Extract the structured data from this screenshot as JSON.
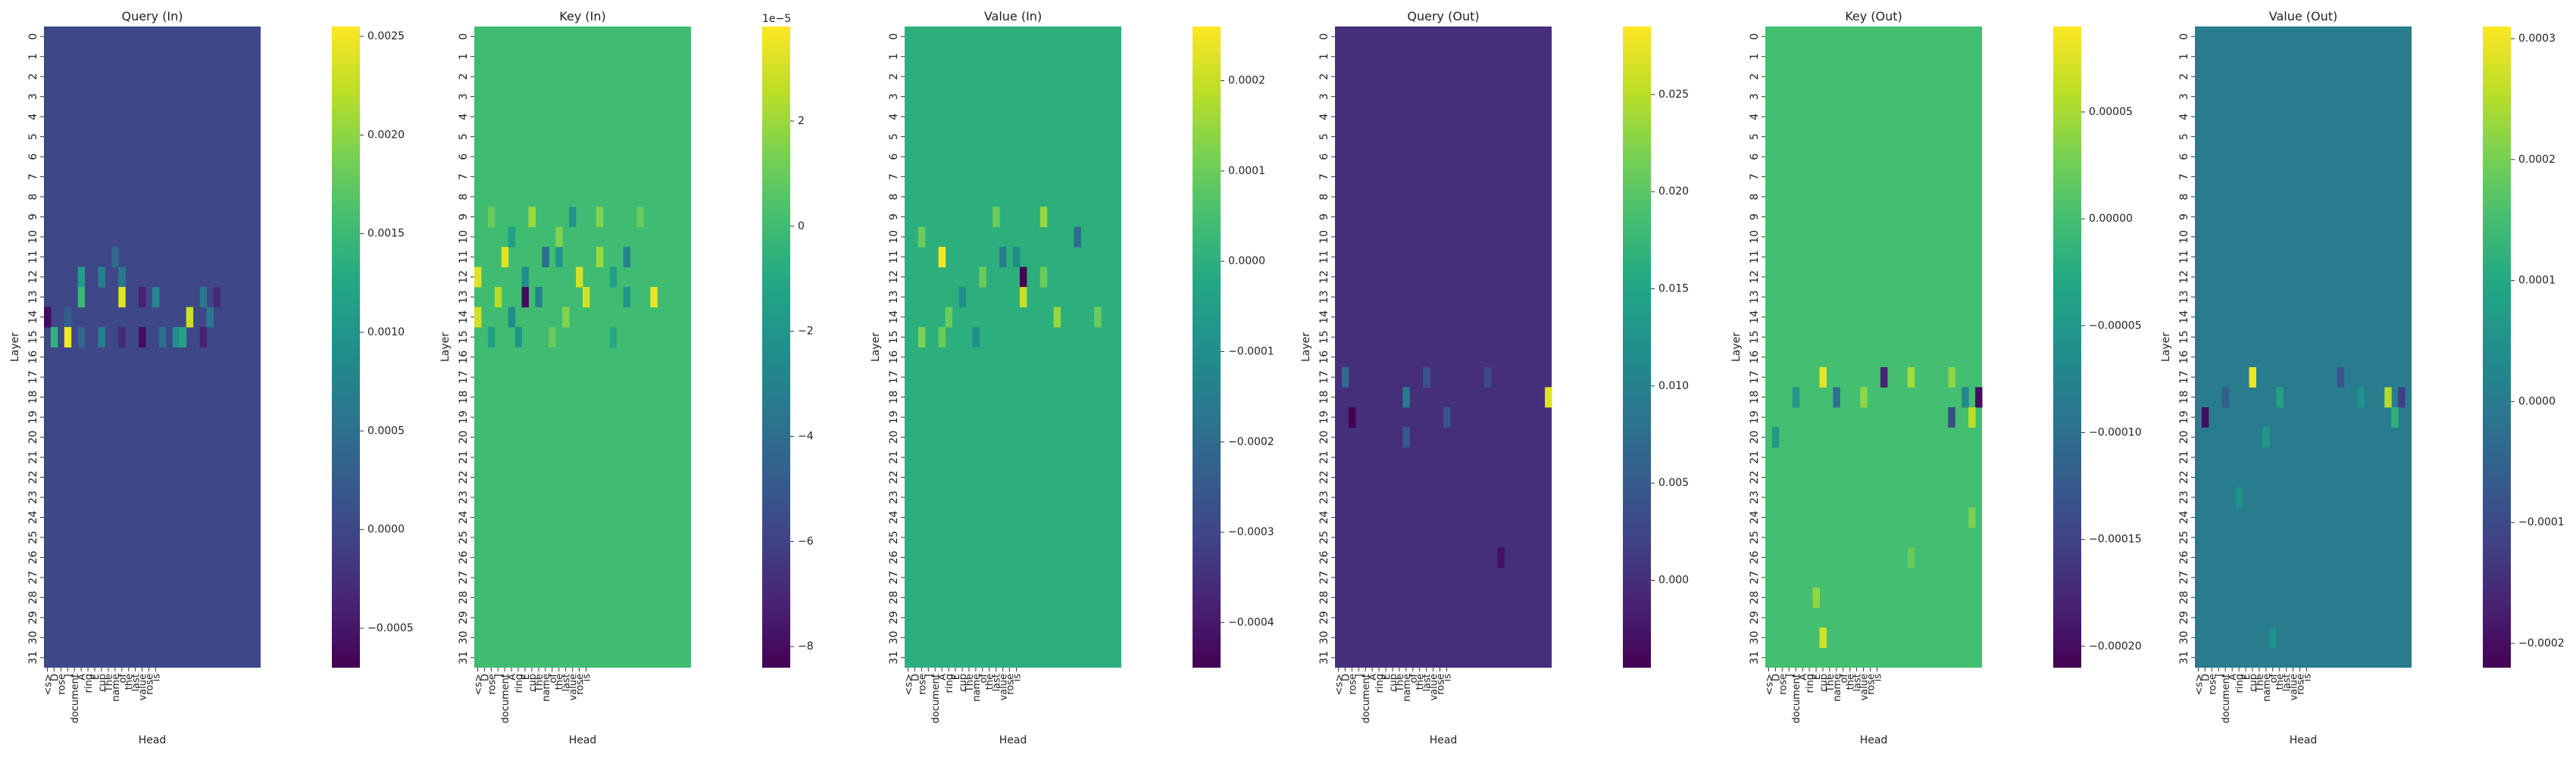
{
  "chart_data": [
    {
      "type": "heatmap",
      "title": "Query (In)",
      "xlabel": "Head",
      "ylabel": "Layer",
      "x_categories": [
        "<s>",
        "D",
        "rose",
        "J",
        "document",
        "A",
        "ring",
        "E",
        "cup",
        "The",
        "name",
        "of",
        "the",
        "last",
        "value",
        "rose",
        "is"
      ],
      "y_categories": [
        "0",
        "1",
        "2",
        "3",
        "4",
        "5",
        "6",
        "7",
        "8",
        "9",
        "10",
        "11",
        "12",
        "13",
        "14",
        "15",
        "16",
        "17",
        "18",
        "19",
        "20",
        "21",
        "22",
        "23",
        "24",
        "25",
        "26",
        "27",
        "28",
        "29",
        "30",
        "31"
      ],
      "colormap": "viridis",
      "range": [
        -0.0007,
        0.00255
      ],
      "colorbar_ticks": [
        "−0.0005",
        "0.0000",
        "0.0005",
        "0.0010",
        "0.0015",
        "0.0020",
        "0.0025"
      ],
      "colorbar_tick_values": [
        -0.0005,
        0.0,
        0.0005,
        0.001,
        0.0015,
        0.002,
        0.0025
      ],
      "colorbar_offset_label": "",
      "baseline": 0.0,
      "cells": [
        {
          "row": 11,
          "col": 10,
          "value": 0.0004
        },
        {
          "row": 12,
          "col": 5,
          "value": 0.0011
        },
        {
          "row": 12,
          "col": 8,
          "value": 0.0007
        },
        {
          "row": 12,
          "col": 11,
          "value": 0.0006
        },
        {
          "row": 13,
          "col": 5,
          "value": 0.0015
        },
        {
          "row": 13,
          "col": 11,
          "value": 0.0024
        },
        {
          "row": 13,
          "col": 14,
          "value": -0.0004
        },
        {
          "row": 13,
          "col": 16,
          "value": 0.0008
        },
        {
          "row": 13,
          "col": 23,
          "value": 0.0006
        },
        {
          "row": 13,
          "col": 25,
          "value": -0.0003
        },
        {
          "row": 14,
          "col": 0,
          "value": -0.0006
        },
        {
          "row": 14,
          "col": 3,
          "value": 0.0003
        },
        {
          "row": 14,
          "col": 21,
          "value": 0.0023
        },
        {
          "row": 14,
          "col": 24,
          "value": 0.0006
        },
        {
          "row": 15,
          "col": 1,
          "value": 0.0014
        },
        {
          "row": 15,
          "col": 3,
          "value": 0.0025
        },
        {
          "row": 15,
          "col": 5,
          "value": 0.0004
        },
        {
          "row": 15,
          "col": 8,
          "value": 0.0007
        },
        {
          "row": 15,
          "col": 11,
          "value": -0.0003
        },
        {
          "row": 15,
          "col": 14,
          "value": -0.0006
        },
        {
          "row": 15,
          "col": 17,
          "value": 0.0005
        },
        {
          "row": 15,
          "col": 19,
          "value": 0.0009
        },
        {
          "row": 15,
          "col": 20,
          "value": 0.0012
        },
        {
          "row": 15,
          "col": 23,
          "value": -0.0004
        }
      ]
    },
    {
      "type": "heatmap",
      "title": "Key (In)",
      "xlabel": "Head",
      "ylabel": "Layer",
      "x_categories": [
        "<s>",
        "D",
        "rose",
        "J",
        "document",
        "A",
        "ring",
        "E",
        "cup",
        "The",
        "name",
        "of",
        "the",
        "last",
        "value",
        "rose",
        "is"
      ],
      "y_categories": [
        "0",
        "1",
        "2",
        "3",
        "4",
        "5",
        "6",
        "7",
        "8",
        "9",
        "10",
        "11",
        "12",
        "13",
        "14",
        "15",
        "16",
        "17",
        "18",
        "19",
        "20",
        "21",
        "22",
        "23",
        "24",
        "25",
        "26",
        "27",
        "28",
        "29",
        "30",
        "31"
      ],
      "colormap": "viridis",
      "range": [
        -8.4e-05,
        3.8e-05
      ],
      "colorbar_ticks": [
        "−8",
        "−6",
        "−4",
        "−2",
        "0",
        "2"
      ],
      "colorbar_tick_values": [
        -8e-05,
        -6e-05,
        -4e-05,
        -2e-05,
        0.0,
        2e-05
      ],
      "colorbar_offset_label": "1e−5",
      "baseline": 0.0,
      "cells": [
        {
          "row": 9,
          "col": 2,
          "value": 1e-05
        },
        {
          "row": 9,
          "col": 8,
          "value": 2e-05
        },
        {
          "row": 9,
          "col": 14,
          "value": -2e-05
        },
        {
          "row": 9,
          "col": 18,
          "value": 1.5e-05
        },
        {
          "row": 9,
          "col": 24,
          "value": 1e-05
        },
        {
          "row": 10,
          "col": 5,
          "value": -1.5e-05
        },
        {
          "row": 10,
          "col": 12,
          "value": 1.5e-05
        },
        {
          "row": 11,
          "col": 4,
          "value": 3.2e-05
        },
        {
          "row": 11,
          "col": 10,
          "value": -4e-05
        },
        {
          "row": 11,
          "col": 12,
          "value": -2e-05
        },
        {
          "row": 11,
          "col": 18,
          "value": 2e-05
        },
        {
          "row": 11,
          "col": 22,
          "value": -3e-05
        },
        {
          "row": 12,
          "col": 0,
          "value": 3.2e-05
        },
        {
          "row": 12,
          "col": 7,
          "value": -2.5e-05
        },
        {
          "row": 12,
          "col": 15,
          "value": 3e-05
        },
        {
          "row": 12,
          "col": 20,
          "value": -1.5e-05
        },
        {
          "row": 13,
          "col": 3,
          "value": 2.5e-05
        },
        {
          "row": 13,
          "col": 7,
          "value": -8e-05
        },
        {
          "row": 13,
          "col": 9,
          "value": -3e-05
        },
        {
          "row": 13,
          "col": 16,
          "value": 3e-05
        },
        {
          "row": 13,
          "col": 22,
          "value": -2e-05
        },
        {
          "row": 13,
          "col": 26,
          "value": 3.5e-05
        },
        {
          "row": 14,
          "col": 0,
          "value": 3e-05
        },
        {
          "row": 14,
          "col": 5,
          "value": -2.5e-05
        },
        {
          "row": 14,
          "col": 13,
          "value": 1.5e-05
        },
        {
          "row": 15,
          "col": 2,
          "value": -1.5e-05
        },
        {
          "row": 15,
          "col": 6,
          "value": -2e-05
        },
        {
          "row": 15,
          "col": 11,
          "value": 1e-05
        },
        {
          "row": 15,
          "col": 20,
          "value": -1e-05
        }
      ]
    },
    {
      "type": "heatmap",
      "title": "Value (In)",
      "xlabel": "Head",
      "ylabel": "Layer",
      "x_categories": [
        "<s>",
        "D",
        "rose",
        "J",
        "document",
        "A",
        "ring",
        "E",
        "cup",
        "The",
        "name",
        "of",
        "the",
        "last",
        "value",
        "rose",
        "is"
      ],
      "y_categories": [
        "0",
        "1",
        "2",
        "3",
        "4",
        "5",
        "6",
        "7",
        "8",
        "9",
        "10",
        "11",
        "12",
        "13",
        "14",
        "15",
        "16",
        "17",
        "18",
        "19",
        "20",
        "21",
        "22",
        "23",
        "24",
        "25",
        "26",
        "27",
        "28",
        "29",
        "30",
        "31"
      ],
      "colormap": "viridis",
      "range": [
        -0.00045,
        0.00026
      ],
      "colorbar_ticks": [
        "−0.0004",
        "−0.0003",
        "−0.0002",
        "−0.0001",
        "0.0000",
        "0.0001",
        "0.0002"
      ],
      "colorbar_tick_values": [
        -0.0004,
        -0.0003,
        -0.0002,
        -0.0001,
        0.0,
        0.0001,
        0.0002
      ],
      "colorbar_offset_label": "",
      "baseline": 0.0,
      "cells": [
        {
          "row": 9,
          "col": 13,
          "value": 0.0001
        },
        {
          "row": 9,
          "col": 20,
          "value": 0.00015
        },
        {
          "row": 10,
          "col": 2,
          "value": 0.0001
        },
        {
          "row": 10,
          "col": 25,
          "value": -0.0002
        },
        {
          "row": 11,
          "col": 5,
          "value": 0.00025
        },
        {
          "row": 11,
          "col": 14,
          "value": -0.00015
        },
        {
          "row": 11,
          "col": 16,
          "value": -0.0001
        },
        {
          "row": 12,
          "col": 17,
          "value": -0.00045
        },
        {
          "row": 12,
          "col": 11,
          "value": 0.0001
        },
        {
          "row": 12,
          "col": 20,
          "value": 0.0001
        },
        {
          "row": 13,
          "col": 17,
          "value": 0.0002
        },
        {
          "row": 13,
          "col": 8,
          "value": -0.0001
        },
        {
          "row": 14,
          "col": 6,
          "value": 0.0001
        },
        {
          "row": 14,
          "col": 22,
          "value": 0.00015
        },
        {
          "row": 14,
          "col": 28,
          "value": 0.0001
        },
        {
          "row": 15,
          "col": 2,
          "value": 0.00012
        },
        {
          "row": 15,
          "col": 5,
          "value": 0.0001
        },
        {
          "row": 15,
          "col": 10,
          "value": -0.0001
        }
      ]
    },
    {
      "type": "heatmap",
      "title": "Query (Out)",
      "xlabel": "Head",
      "ylabel": "Layer",
      "x_categories": [
        "<s>",
        "D",
        "rose",
        "J",
        "document",
        "A",
        "ring",
        "E",
        "cup",
        "The",
        "name",
        "of",
        "the",
        "last",
        "value",
        "rose",
        "is"
      ],
      "y_categories": [
        "0",
        "1",
        "2",
        "3",
        "4",
        "5",
        "6",
        "7",
        "8",
        "9",
        "10",
        "11",
        "12",
        "13",
        "14",
        "15",
        "16",
        "17",
        "18",
        "19",
        "20",
        "21",
        "22",
        "23",
        "24",
        "25",
        "26",
        "27",
        "28",
        "29",
        "30",
        "31"
      ],
      "colormap": "viridis",
      "range": [
        -0.0045,
        0.0285
      ],
      "colorbar_ticks": [
        "0.000",
        "0.005",
        "0.010",
        "0.015",
        "0.020",
        "0.025"
      ],
      "colorbar_tick_values": [
        0.0,
        0.005,
        0.01,
        0.015,
        0.02,
        0.025
      ],
      "colorbar_offset_label": "",
      "baseline": 0.0,
      "cells": [
        {
          "row": 17,
          "col": 1,
          "value": 0.007
        },
        {
          "row": 17,
          "col": 13,
          "value": 0.004
        },
        {
          "row": 17,
          "col": 22,
          "value": 0.003
        },
        {
          "row": 18,
          "col": 10,
          "value": 0.009
        },
        {
          "row": 18,
          "col": 31,
          "value": 0.027
        },
        {
          "row": 19,
          "col": 2,
          "value": -0.0045
        },
        {
          "row": 19,
          "col": 16,
          "value": 0.004
        },
        {
          "row": 20,
          "col": 10,
          "value": 0.005
        },
        {
          "row": 26,
          "col": 24,
          "value": -0.003
        }
      ]
    },
    {
      "type": "heatmap",
      "title": "Key (Out)",
      "xlabel": "Head",
      "ylabel": "Layer",
      "x_categories": [
        "<s>",
        "D",
        "rose",
        "J",
        "document",
        "A",
        "ring",
        "E",
        "cup",
        "The",
        "name",
        "of",
        "the",
        "last",
        "value",
        "rose",
        "is"
      ],
      "y_categories": [
        "0",
        "1",
        "2",
        "3",
        "4",
        "5",
        "6",
        "7",
        "8",
        "9",
        "10",
        "11",
        "12",
        "13",
        "14",
        "15",
        "16",
        "17",
        "18",
        "19",
        "20",
        "21",
        "22",
        "23",
        "24",
        "25",
        "26",
        "27",
        "28",
        "29",
        "30",
        "31"
      ],
      "colormap": "viridis",
      "range": [
        -0.00021,
        9e-05
      ],
      "colorbar_ticks": [
        "−0.00020",
        "−0.00015",
        "−0.00010",
        "−0.00005",
        "0.00000",
        "0.00005"
      ],
      "colorbar_tick_values": [
        -0.0002,
        -0.00015,
        -0.0001,
        -5e-05,
        0.0,
        5e-05
      ],
      "colorbar_offset_label": "",
      "baseline": 0.0,
      "cells": [
        {
          "row": 17,
          "col": 8,
          "value": 8e-05
        },
        {
          "row": 17,
          "col": 17,
          "value": -0.00018
        },
        {
          "row": 17,
          "col": 21,
          "value": 5e-05
        },
        {
          "row": 17,
          "col": 27,
          "value": 4e-05
        },
        {
          "row": 18,
          "col": 4,
          "value": -5e-05
        },
        {
          "row": 18,
          "col": 10,
          "value": -0.0001
        },
        {
          "row": 18,
          "col": 14,
          "value": 4e-05
        },
        {
          "row": 18,
          "col": 29,
          "value": -7e-05
        },
        {
          "row": 18,
          "col": 31,
          "value": -0.0002
        },
        {
          "row": 19,
          "col": 27,
          "value": -0.00014
        },
        {
          "row": 19,
          "col": 30,
          "value": 6e-05
        },
        {
          "row": 20,
          "col": 1,
          "value": -5e-05
        },
        {
          "row": 24,
          "col": 30,
          "value": 3e-05
        },
        {
          "row": 26,
          "col": 21,
          "value": 2e-05
        },
        {
          "row": 28,
          "col": 7,
          "value": 4e-05
        },
        {
          "row": 30,
          "col": 8,
          "value": 7e-05
        }
      ]
    },
    {
      "type": "heatmap",
      "title": "Value (Out)",
      "xlabel": "Head",
      "ylabel": "Layer",
      "x_categories": [
        "<s>",
        "D",
        "rose",
        "J",
        "document",
        "A",
        "ring",
        "E",
        "cup",
        "The",
        "name",
        "of",
        "the",
        "last",
        "value",
        "rose",
        "is"
      ],
      "y_categories": [
        "0",
        "1",
        "2",
        "3",
        "4",
        "5",
        "6",
        "7",
        "8",
        "9",
        "10",
        "11",
        "12",
        "13",
        "14",
        "15",
        "16",
        "17",
        "18",
        "19",
        "20",
        "21",
        "22",
        "23",
        "24",
        "25",
        "26",
        "27",
        "28",
        "29",
        "30",
        "31"
      ],
      "colormap": "viridis",
      "range": [
        -0.00022,
        0.00031
      ],
      "colorbar_ticks": [
        "−0.0002",
        "−0.0001",
        "0.0000",
        "0.0001",
        "0.0002",
        "0.0003"
      ],
      "colorbar_tick_values": [
        -0.0002,
        -0.0001,
        0.0,
        0.0001,
        0.0002,
        0.0003
      ],
      "colorbar_offset_label": "",
      "baseline": 0.0,
      "cells": [
        {
          "row": 17,
          "col": 8,
          "value": 0.0003
        },
        {
          "row": 17,
          "col": 21,
          "value": -8e-05
        },
        {
          "row": 18,
          "col": 4,
          "value": -6e-05
        },
        {
          "row": 18,
          "col": 12,
          "value": 8e-05
        },
        {
          "row": 18,
          "col": 24,
          "value": 5e-05
        },
        {
          "row": 18,
          "col": 28,
          "value": 0.00025
        },
        {
          "row": 18,
          "col": 30,
          "value": -0.00012
        },
        {
          "row": 19,
          "col": 1,
          "value": -0.0002
        },
        {
          "row": 19,
          "col": 29,
          "value": 0.00012
        },
        {
          "row": 20,
          "col": 10,
          "value": 6e-05
        },
        {
          "row": 23,
          "col": 6,
          "value": 5e-05
        },
        {
          "row": 30,
          "col": 11,
          "value": 5e-05
        }
      ]
    }
  ]
}
